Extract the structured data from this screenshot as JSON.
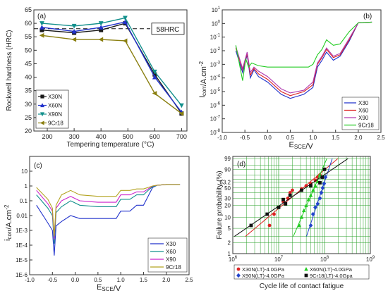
{
  "chart_data": [
    {
      "type": "line",
      "panel": "(a)",
      "xlabel": "Tempering temperature (°C)",
      "ylabel": "Rockwell hardness (HRC)",
      "xlim": [
        150,
        720
      ],
      "ylim": [
        20,
        65
      ],
      "xticks": [
        200,
        300,
        400,
        500,
        600,
        700
      ],
      "yticks": [
        20,
        25,
        30,
        35,
        40,
        45,
        50,
        55,
        60,
        65
      ],
      "reference_line": {
        "y": 58,
        "label": "58HRC"
      },
      "grid": false,
      "legend": "lower-left",
      "series": [
        {
          "name": "X30N",
          "color": "#1a1a1a",
          "marker": "square",
          "x": [
            180,
            300,
            400,
            490,
            600,
            700
          ],
          "y": [
            57.5,
            56.5,
            57.5,
            60.0,
            41.0,
            26.5
          ]
        },
        {
          "name": "X60N",
          "color": "#2233cc",
          "marker": "triangle-up",
          "x": [
            180,
            300,
            400,
            490,
            600,
            700
          ],
          "y": [
            58.5,
            57.0,
            58.5,
            60.5,
            40.0,
            27.0
          ]
        },
        {
          "name": "X90N",
          "color": "#13908c",
          "marker": "triangle-down",
          "x": [
            180,
            300,
            400,
            490,
            600,
            700
          ],
          "y": [
            60.0,
            59.0,
            60.0,
            62.0,
            42.0,
            29.5
          ]
        },
        {
          "name": "9Cr18",
          "color": "#8a7f10",
          "marker": "triangle-left",
          "x": [
            180,
            300,
            400,
            490,
            600,
            700
          ],
          "y": [
            55.5,
            54.0,
            54.0,
            53.5,
            34.0,
            26.5
          ]
        }
      ]
    },
    {
      "type": "line",
      "panel": "(b)",
      "xlabel": "E",
      "xlabel_sub": "SCE",
      "xlabel_unit": "/V",
      "ylabel": "I",
      "ylabel_sub": "corr",
      "ylabel_unit": "/A.cm",
      "ylabel_sup": "-2",
      "xlim": [
        -1.0,
        2.5
      ],
      "ylog": true,
      "ylim_exp": [
        -8,
        1
      ],
      "xticks": [
        "-1.0",
        "-0.5",
        "0.0",
        "0.5",
        "1.0",
        "1.5",
        "2.0",
        "2.5"
      ],
      "ytick_exponents": [
        1,
        0,
        -1,
        -2,
        -3,
        -4,
        -5,
        -6,
        -7,
        -8
      ],
      "legend": "lower-right",
      "series": [
        {
          "name": "X30",
          "color": "#2233cc",
          "x": [
            -0.7,
            -0.55,
            -0.45,
            -0.38,
            -0.3,
            -0.2,
            0.0,
            0.3,
            0.5,
            0.8,
            1.0,
            1.1,
            1.2,
            1.3,
            1.45,
            1.6,
            1.8,
            2.0,
            2.3
          ],
          "ylog": [
            -2.0,
            -3.6,
            -2.3,
            -4.0,
            -3.4,
            -3.9,
            -4.3,
            -5.2,
            -5.5,
            -5.2,
            -4.7,
            -3.2,
            -2.7,
            -2.1,
            -2.7,
            -2.4,
            -1.3,
            0.05,
            0.1
          ]
        },
        {
          "name": "X60",
          "color": "#dd2222",
          "x": [
            -0.7,
            -0.55,
            -0.45,
            -0.38,
            -0.3,
            -0.2,
            0.0,
            0.3,
            0.5,
            0.8,
            1.0,
            1.1,
            1.2,
            1.3,
            1.45,
            1.6,
            1.8,
            2.0,
            2.3
          ],
          "ylog": [
            -1.8,
            -3.4,
            -2.2,
            -3.8,
            -3.3,
            -3.7,
            -4.1,
            -5.0,
            -5.3,
            -5.0,
            -4.5,
            -3.0,
            -2.5,
            -1.9,
            -2.5,
            -2.3,
            -1.2,
            0.05,
            0.1
          ]
        },
        {
          "name": "X90",
          "color": "#b03ab0",
          "x": [
            -0.7,
            -0.55,
            -0.45,
            -0.38,
            -0.3,
            -0.2,
            0.0,
            0.3,
            0.5,
            0.8,
            1.0,
            1.1,
            1.2,
            1.3,
            1.45,
            1.6,
            1.8,
            2.0,
            2.3
          ],
          "ylog": [
            -1.7,
            -3.3,
            -2.1,
            -3.6,
            -3.2,
            -3.5,
            -3.9,
            -4.8,
            -5.1,
            -4.9,
            -4.3,
            -2.9,
            -2.4,
            -1.8,
            -2.4,
            -2.2,
            -1.1,
            0.05,
            0.1
          ]
        },
        {
          "name": "9Cr18",
          "color": "#22cc22",
          "x": [
            -0.7,
            -0.55,
            -0.48,
            -0.42,
            -0.35,
            -0.2,
            0.0,
            0.3,
            0.6,
            0.9,
            1.0,
            1.1,
            1.2,
            1.3,
            1.45,
            1.6,
            1.8,
            2.0,
            2.3
          ],
          "ylog": [
            -1.6,
            -4.2,
            -2.6,
            -3.2,
            -2.9,
            -3.1,
            -3.2,
            -3.2,
            -3.2,
            -3.2,
            -3.0,
            -2.3,
            -1.9,
            -1.2,
            -1.6,
            -1.5,
            -0.6,
            0.05,
            0.1
          ]
        }
      ]
    },
    {
      "type": "line",
      "panel": "(c)",
      "xlabel": "E",
      "xlabel_sub": "SCE",
      "xlabel_unit": "/V",
      "ylabel": "i",
      "ylabel_sub": "corr",
      "ylabel_unit": "/A.cm",
      "ylabel_sup": "-2",
      "xlim": [
        -1.0,
        2.5
      ],
      "ylog": true,
      "ylim_exp": [
        -6,
        2
      ],
      "xticks": [
        "-1.0",
        "-0.5",
        "0.0",
        "0.5",
        "1.0",
        "1.5",
        "2.0",
        "2.5"
      ],
      "yticks": [
        "10",
        "1",
        "0.1",
        "0.01",
        "1E-3",
        "1E-4",
        "1E-5",
        "1E-6"
      ],
      "ytick_exponents": [
        1,
        0,
        -1,
        -2,
        -3,
        -4,
        -5,
        -6
      ],
      "legend": "lower-right",
      "series": [
        {
          "name": "X30",
          "color": "#2233cc",
          "x": [
            -0.85,
            -0.6,
            -0.5,
            -0.46,
            -0.42,
            -0.3,
            -0.1,
            0.1,
            0.5,
            0.9,
            1.0,
            1.2,
            1.35,
            1.5,
            1.6,
            1.7,
            1.8,
            2.0,
            2.3
          ],
          "ylog": [
            -1.3,
            -2.5,
            -3.0,
            -4.7,
            -2.7,
            -2.4,
            -2.0,
            -2.2,
            -2.2,
            -2.2,
            -1.7,
            -1.7,
            -1.3,
            -1.3,
            -0.7,
            -0.1,
            0.05,
            0.1,
            0.1
          ]
        },
        {
          "name": "X60",
          "color": "#13908c",
          "x": [
            -0.85,
            -0.6,
            -0.5,
            -0.46,
            -0.42,
            -0.3,
            -0.1,
            0.1,
            0.5,
            0.9,
            1.0,
            1.2,
            1.35,
            1.5,
            1.6,
            1.7,
            1.8,
            2.0,
            2.3
          ],
          "ylog": [
            -0.6,
            -1.5,
            -2.0,
            -3.9,
            -1.8,
            -1.4,
            -1.0,
            -1.3,
            -1.4,
            -1.4,
            -0.9,
            -0.9,
            -0.6,
            -0.6,
            -0.3,
            -0.05,
            0.05,
            0.1,
            0.1
          ]
        },
        {
          "name": "X90",
          "color": "#cc22cc",
          "x": [
            -0.85,
            -0.6,
            -0.5,
            -0.46,
            -0.42,
            -0.3,
            -0.1,
            0.1,
            0.5,
            0.9,
            1.0,
            1.2,
            1.35,
            1.5,
            1.6,
            1.7,
            1.8,
            2.0,
            2.3
          ],
          "ylog": [
            -0.3,
            -1.2,
            -1.7,
            -3.6,
            -1.5,
            -1.0,
            -0.7,
            -1.0,
            -1.1,
            -1.1,
            -0.6,
            -0.6,
            -0.4,
            -0.4,
            -0.2,
            0.0,
            0.05,
            0.1,
            0.1
          ]
        },
        {
          "name": "9Cr18",
          "color": "#b3a320",
          "x": [
            -0.85,
            -0.6,
            -0.5,
            -0.46,
            -0.42,
            -0.3,
            -0.1,
            0.1,
            0.5,
            0.9,
            1.0,
            1.2,
            1.35,
            1.5,
            1.6,
            1.7,
            1.8,
            2.0,
            2.3
          ],
          "ylog": [
            -0.1,
            -0.9,
            -1.5,
            -3.4,
            -1.3,
            -0.6,
            -0.3,
            -0.6,
            -0.7,
            -0.7,
            -0.3,
            -0.3,
            -0.2,
            -0.2,
            -0.1,
            0.0,
            0.05,
            0.1,
            0.1
          ]
        }
      ]
    },
    {
      "type": "scatter",
      "panel": "(d)",
      "xlabel": "Cycle life of contact fatigue",
      "ylabel": "Failure probability (%)",
      "xlog": true,
      "xlim_exp": [
        6,
        9
      ],
      "xtick_exponents": [
        6,
        7,
        8,
        9
      ],
      "yscale": "weibull-probability",
      "yticks": [
        "1",
        "2",
        "5",
        "10",
        "20",
        "30",
        "50",
        "63.2",
        "90",
        "99"
      ],
      "ytick_values": [
        1,
        2,
        5,
        10,
        20,
        30,
        50,
        63.2,
        90,
        99
      ],
      "grid": true,
      "legend": "bottom",
      "series": [
        {
          "name": "X30N(LT)-4.0GPa",
          "color": "#dd2222",
          "marker": "circle",
          "x_log": [
            6.8,
            6.9,
            7.0,
            7.1,
            7.2,
            7.25,
            7.3,
            7.5,
            7.6,
            7.7,
            7.8,
            7.85,
            7.9
          ],
          "y": [
            6,
            12,
            18,
            25,
            30,
            40,
            45,
            48,
            55,
            60,
            68,
            75,
            80
          ]
        },
        {
          "name": "X60N(LT)-4.0GPa",
          "color": "#22cc22",
          "marker": "triangle-up",
          "x_log": [
            7.45,
            7.5,
            7.55,
            7.6,
            7.65,
            7.7,
            7.75,
            7.8,
            7.85,
            7.9
          ],
          "y": [
            6,
            10,
            15,
            20,
            28,
            35,
            45,
            55,
            65,
            80
          ]
        },
        {
          "name": "X90N(LT)-4.0GPa",
          "color": "#2244cc",
          "marker": "diamond",
          "x_log": [
            7.7,
            7.75,
            7.8,
            7.85,
            7.9,
            7.93,
            7.96,
            7.99,
            8.02
          ],
          "y": [
            6,
            12,
            18,
            22,
            30,
            40,
            50,
            60,
            75
          ]
        },
        {
          "name": "9Cr18(LT)-4.0Gpa",
          "color": "#111111",
          "marker": "square",
          "x_log": [
            6.4,
            6.75,
            7.0,
            7.1,
            7.15,
            7.25,
            7.5,
            7.7,
            7.9,
            7.95,
            8.0
          ],
          "y": [
            6,
            12,
            18,
            28,
            22,
            35,
            45,
            55,
            62,
            75,
            90
          ]
        }
      ]
    }
  ]
}
